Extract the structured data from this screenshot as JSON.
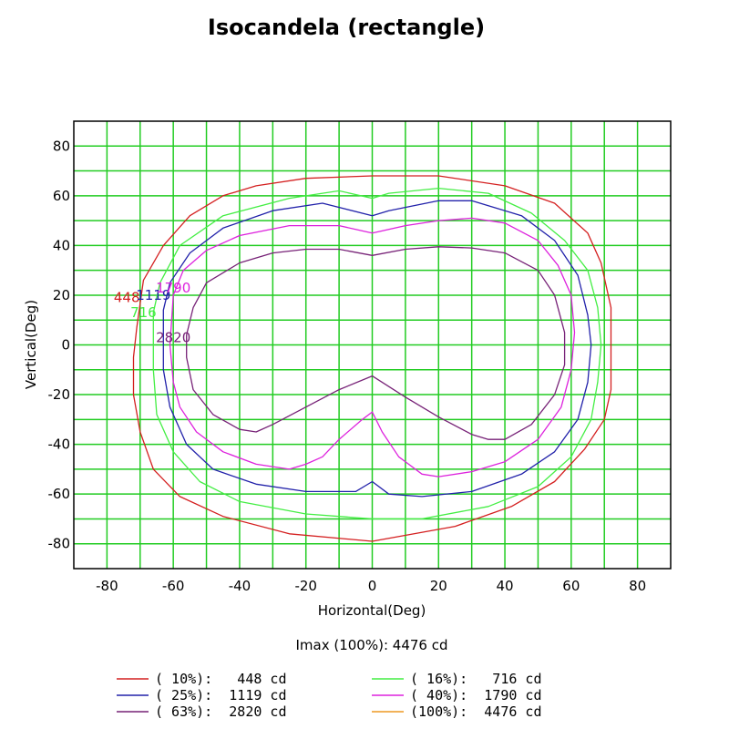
{
  "chart_data": {
    "type": "line",
    "title": "Isocandela (rectangle)",
    "xlabel": "Horizontal(Deg)",
    "ylabel": "Vertical(Deg)",
    "xlim": [
      -90,
      90
    ],
    "ylim": [
      -90,
      90
    ],
    "x_ticks": [
      -80,
      -60,
      -40,
      -20,
      0,
      20,
      40,
      60,
      80
    ],
    "y_ticks": [
      -80,
      -60,
      -40,
      -20,
      0,
      20,
      40,
      60,
      80
    ],
    "grid": true,
    "imax_label": "Imax (100%): 4476 cd",
    "colors": {
      "grid": "#22cc22",
      "frame": "#000000"
    },
    "series": [
      {
        "name": "10%",
        "label": "448",
        "legend": "( 10%):   448 cd",
        "color": "#d42020",
        "label_at": [
          -74,
          19
        ],
        "points": [
          [
            -71,
            7
          ],
          [
            -69,
            26
          ],
          [
            -63,
            40
          ],
          [
            -55,
            52
          ],
          [
            -45,
            60
          ],
          [
            -35,
            64
          ],
          [
            -20,
            67
          ],
          [
            0,
            68
          ],
          [
            20,
            68
          ],
          [
            40,
            64
          ],
          [
            55,
            57
          ],
          [
            65,
            45
          ],
          [
            69,
            33
          ],
          [
            72,
            15
          ],
          [
            72,
            0
          ],
          [
            72,
            -18
          ],
          [
            70,
            -30
          ],
          [
            64,
            -42
          ],
          [
            55,
            -55
          ],
          [
            42,
            -65
          ],
          [
            25,
            -73
          ],
          [
            0,
            -79
          ],
          [
            -25,
            -76
          ],
          [
            -45,
            -69
          ],
          [
            -58,
            -61
          ],
          [
            -66,
            -50
          ],
          [
            -70,
            -35
          ],
          [
            -72,
            -20
          ],
          [
            -72,
            -5
          ],
          [
            -71,
            7
          ]
        ]
      },
      {
        "name": "16%",
        "label": "716",
        "legend": "( 16%):   716 cd",
        "color": "#44ee44",
        "label_at": [
          -69,
          13
        ],
        "points": [
          [
            -66,
            13
          ],
          [
            -64,
            25
          ],
          [
            -58,
            40
          ],
          [
            -45,
            52
          ],
          [
            -25,
            59
          ],
          [
            -10,
            62
          ],
          [
            0,
            59
          ],
          [
            5,
            61
          ],
          [
            20,
            63
          ],
          [
            35,
            61
          ],
          [
            48,
            53
          ],
          [
            58,
            42
          ],
          [
            65,
            30
          ],
          [
            68,
            15
          ],
          [
            69,
            0
          ],
          [
            68,
            -15
          ],
          [
            66,
            -30
          ],
          [
            60,
            -45
          ],
          [
            50,
            -57
          ],
          [
            35,
            -65
          ],
          [
            15,
            -70
          ],
          [
            0,
            -70
          ],
          [
            -20,
            -68
          ],
          [
            -40,
            -63
          ],
          [
            -52,
            -55
          ],
          [
            -60,
            -43
          ],
          [
            -65,
            -28
          ],
          [
            -66,
            -10
          ],
          [
            -66,
            13
          ]
        ]
      },
      {
        "name": "25%",
        "label": "1119",
        "legend": "( 25%):  1119 cd",
        "color": "#2222aa",
        "label_at": [
          -66,
          20
        ],
        "points": [
          [
            -63,
            14
          ],
          [
            -61,
            25
          ],
          [
            -55,
            37
          ],
          [
            -45,
            47
          ],
          [
            -30,
            54
          ],
          [
            -15,
            57
          ],
          [
            0,
            52
          ],
          [
            5,
            54
          ],
          [
            20,
            58
          ],
          [
            30,
            58
          ],
          [
            45,
            52
          ],
          [
            55,
            42
          ],
          [
            62,
            28
          ],
          [
            65,
            12
          ],
          [
            66,
            0
          ],
          [
            65,
            -15
          ],
          [
            62,
            -30
          ],
          [
            55,
            -43
          ],
          [
            45,
            -52
          ],
          [
            30,
            -59
          ],
          [
            15,
            -61
          ],
          [
            5,
            -60
          ],
          [
            0,
            -55
          ],
          [
            -5,
            -59
          ],
          [
            -20,
            -59
          ],
          [
            -35,
            -56
          ],
          [
            -48,
            -50
          ],
          [
            -56,
            -40
          ],
          [
            -61,
            -25
          ],
          [
            -63,
            -10
          ],
          [
            -63,
            14
          ]
        ]
      },
      {
        "name": "40%",
        "label": "1790",
        "legend": "( 40%):  1790 cd",
        "color": "#dd22dd",
        "label_at": [
          -60,
          23
        ],
        "points": [
          [
            -60,
            20
          ],
          [
            -57,
            30
          ],
          [
            -50,
            38
          ],
          [
            -40,
            44
          ],
          [
            -25,
            48
          ],
          [
            -10,
            48
          ],
          [
            0,
            45
          ],
          [
            10,
            48
          ],
          [
            20,
            50
          ],
          [
            30,
            51
          ],
          [
            40,
            49
          ],
          [
            50,
            42
          ],
          [
            56,
            32
          ],
          [
            60,
            20
          ],
          [
            61,
            5
          ],
          [
            60,
            -10
          ],
          [
            57,
            -25
          ],
          [
            50,
            -38
          ],
          [
            40,
            -47
          ],
          [
            30,
            -51
          ],
          [
            20,
            -53
          ],
          [
            15,
            -52
          ],
          [
            8,
            -45
          ],
          [
            3,
            -35
          ],
          [
            0,
            -27
          ],
          [
            -3,
            -30
          ],
          [
            -10,
            -38
          ],
          [
            -15,
            -45
          ],
          [
            -20,
            -48
          ],
          [
            -25,
            -50
          ],
          [
            -35,
            -48
          ],
          [
            -45,
            -43
          ],
          [
            -53,
            -35
          ],
          [
            -58,
            -25
          ],
          [
            -60,
            -15
          ],
          [
            -61,
            0
          ],
          [
            -60,
            20
          ]
        ]
      },
      {
        "name": "63%",
        "label": "2820",
        "legend": "( 63%):  2820 cd",
        "color": "#772277",
        "label_at": [
          -60,
          3
        ],
        "points": [
          [
            -56,
            4
          ],
          [
            -54,
            15
          ],
          [
            -50,
            25
          ],
          [
            -40,
            33
          ],
          [
            -30,
            37
          ],
          [
            -20,
            38.5
          ],
          [
            -10,
            38.5
          ],
          [
            0,
            36
          ],
          [
            10,
            38.5
          ],
          [
            20,
            39.5
          ],
          [
            30,
            39
          ],
          [
            40,
            37
          ],
          [
            50,
            30
          ],
          [
            55,
            20
          ],
          [
            58,
            5
          ],
          [
            58,
            -8
          ],
          [
            55,
            -20
          ],
          [
            48,
            -32
          ],
          [
            40,
            -38
          ],
          [
            35,
            -38
          ],
          [
            30,
            -36
          ],
          [
            20,
            -29
          ],
          [
            10,
            -21
          ],
          [
            0,
            -12.5
          ],
          [
            -10,
            -18
          ],
          [
            -20,
            -25
          ],
          [
            -30,
            -32
          ],
          [
            -35,
            -35
          ],
          [
            -40,
            -34
          ],
          [
            -48,
            -28
          ],
          [
            -54,
            -18
          ],
          [
            -56,
            -5
          ],
          [
            -56,
            4
          ]
        ]
      },
      {
        "name": "100%",
        "label": "",
        "legend": "(100%):  4476 cd",
        "color": "#ee9922",
        "label_at": null,
        "points": []
      }
    ]
  }
}
